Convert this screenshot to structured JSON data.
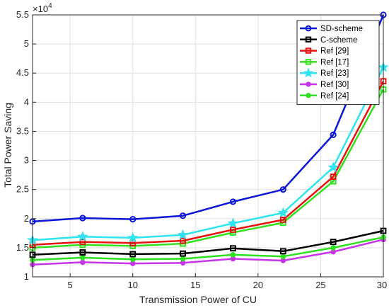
{
  "chart_data": {
    "type": "line",
    "title": "",
    "xlabel": "Transmission Power of CU",
    "ylabel": "Total Power Saving",
    "y_multiplier": "×10",
    "y_multiplier_exp": "4",
    "xlim": [
      2,
      30
    ],
    "ylim": [
      1,
      5.5
    ],
    "x_ticks": [
      5,
      10,
      15,
      20,
      25,
      30
    ],
    "y_ticks": [
      1,
      1.5,
      2,
      2.5,
      3,
      3.5,
      4,
      4.5,
      5,
      5.5
    ],
    "grid": true,
    "legend_position": "top-right",
    "x": [
      2,
      6,
      10,
      14,
      18,
      22,
      26,
      30
    ],
    "series": [
      {
        "name": "SD-scheme",
        "color": "#0b16d6",
        "marker": "circle",
        "values": [
          1.95,
          2.01,
          1.99,
          2.05,
          2.29,
          2.5,
          3.44,
          5.5
        ]
      },
      {
        "name": "C-scheme",
        "color": "#000000",
        "marker": "square",
        "values": [
          1.38,
          1.42,
          1.39,
          1.4,
          1.49,
          1.44,
          1.6,
          1.79
        ]
      },
      {
        "name": "Ref [29]",
        "color": "#e4120d",
        "marker": "square",
        "values": [
          1.55,
          1.6,
          1.58,
          1.62,
          1.81,
          1.98,
          2.72,
          4.36
        ]
      },
      {
        "name": "Ref [17]",
        "color": "#33e01e",
        "marker": "square",
        "values": [
          1.5,
          1.55,
          1.53,
          1.57,
          1.76,
          1.93,
          2.64,
          4.22
        ]
      },
      {
        "name": "Ref [23]",
        "color": "#2fe4ee",
        "marker": "star",
        "values": [
          1.63,
          1.69,
          1.67,
          1.72,
          1.92,
          2.1,
          2.88,
          4.6
        ]
      },
      {
        "name": "Ref [30]",
        "color": "#c636e8",
        "marker": "filled-circle",
        "values": [
          1.21,
          1.25,
          1.23,
          1.24,
          1.31,
          1.28,
          1.43,
          1.64
        ]
      },
      {
        "name": "Ref [24]",
        "color": "#2ee11f",
        "marker": "filled-circle",
        "values": [
          1.29,
          1.33,
          1.3,
          1.31,
          1.38,
          1.35,
          1.5,
          1.68
        ]
      }
    ]
  }
}
